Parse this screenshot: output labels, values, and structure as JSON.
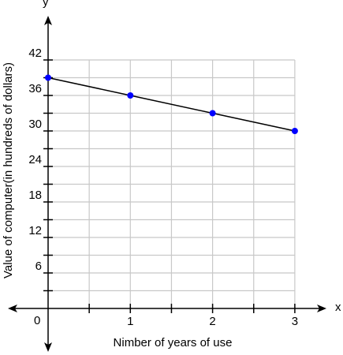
{
  "chart_data": {
    "type": "line",
    "title": "",
    "xlabel": "Nimber of years of use",
    "ylabel": "Value of computer(in hundreds of dollars)",
    "x_axis_letter": "x",
    "y_axis_letter": "y",
    "origin_label": "0",
    "xlim": [
      0,
      3
    ],
    "ylim": [
      0,
      42
    ],
    "x_ticks": [
      1,
      2,
      3
    ],
    "y_ticks": [
      6,
      12,
      18,
      24,
      30,
      36,
      42
    ],
    "grid": true,
    "series": [
      {
        "x": [
          0,
          1,
          2,
          3
        ],
        "y": [
          39,
          36,
          33,
          30
        ]
      }
    ],
    "colors": {
      "line": "#000000",
      "points": "#0000ff",
      "grid": "#c8c8c8",
      "axis": "#000000"
    }
  }
}
